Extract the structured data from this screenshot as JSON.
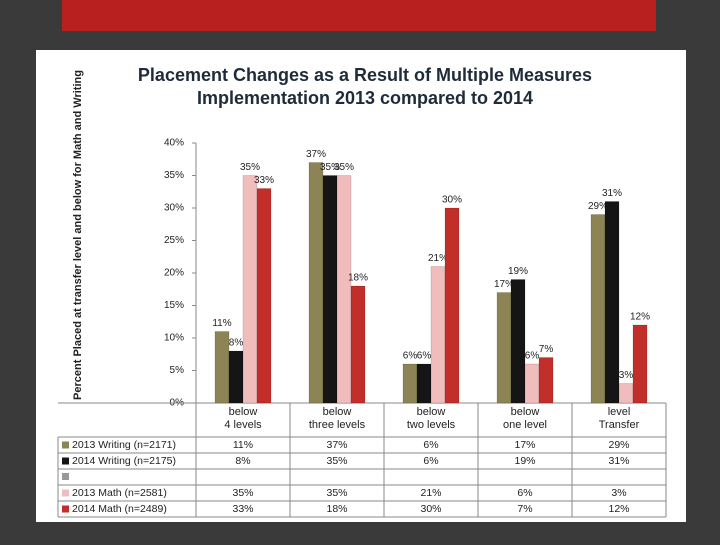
{
  "chart_data": {
    "type": "bar",
    "title": [
      "Placement Changes as a Result of Multiple Measures",
      "Implementation 2013 compared to 2014"
    ],
    "y_label": "Percent Placed at transfer level and below for Math and Writing",
    "categories": [
      [
        "below",
        "4 levels"
      ],
      [
        "below",
        "three levels"
      ],
      [
        "below",
        "two levels"
      ],
      [
        "below",
        "one level"
      ],
      [
        "level",
        "Transfer"
      ]
    ],
    "series": [
      {
        "name": "2013 Writing (n=2171)",
        "color": "#8c8455",
        "values": [
          11,
          37,
          6,
          17,
          29
        ],
        "value_labels": [
          "11%",
          "37%",
          "6%",
          "17%",
          "29%"
        ]
      },
      {
        "name": "2014 Writing (n=2175)",
        "color": "#151515",
        "values": [
          8,
          35,
          6,
          19,
          31
        ],
        "value_labels": [
          "8%",
          "35%",
          "6%",
          "19%",
          "31%"
        ]
      },
      {
        "name": "2013 Math (n=2581)",
        "color": "#f0bcbc",
        "values": [
          35,
          35,
          21,
          6,
          3
        ],
        "value_labels": [
          "35%",
          "35%",
          "21%",
          "6%",
          "3%"
        ]
      },
      {
        "name": "2014 Math (n=2489)",
        "color": "#c22e2a",
        "values": [
          33,
          18,
          30,
          7,
          12
        ],
        "value_labels": [
          "33%",
          "18%",
          "30%",
          "7%",
          "12%"
        ]
      }
    ],
    "ylim": [
      0,
      40
    ],
    "yticks": [
      {
        "value": 0,
        "label": "0%"
      },
      {
        "value": 5,
        "label": "5%"
      },
      {
        "value": 10,
        "label": "10%"
      },
      {
        "value": 15,
        "label": "15%"
      },
      {
        "value": 20,
        "label": "20%"
      },
      {
        "value": 25,
        "label": "25%"
      },
      {
        "value": 30,
        "label": "30%"
      },
      {
        "value": 35,
        "label": "35%"
      },
      {
        "value": 40,
        "label": "40%"
      }
    ],
    "grid": false
  }
}
